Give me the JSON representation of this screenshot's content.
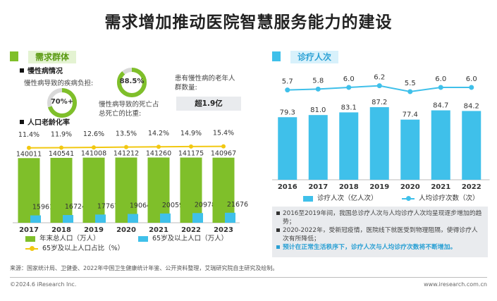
{
  "title": "需求增加推动医院智慧服务能力的建设",
  "colors": {
    "green": "#7fbf2a",
    "blue": "#3fc0ea",
    "yellow": "#f2c811",
    "light_green": "#e4f3d2",
    "light_blue": "#d8f1fb",
    "gray_box": "#e9ebee",
    "ring_track": "#d9d9d9"
  },
  "left_section": {
    "header": "需求群体",
    "chronic": {
      "subheader": "慢性病情况",
      "burden_label": "慢性病导致的疾病负担:",
      "burden_value": "70%+",
      "burden_fraction": 0.7,
      "death_value": "88.5%",
      "death_fraction": 0.885,
      "death_label_1": "慢性病导致的死亡占",
      "death_label_2": "总死亡的比重:",
      "elderly_label_1": "患有慢性病的老年人",
      "elderly_label_2": "群数量:",
      "elderly_value": "超1.9亿"
    },
    "aging": {
      "subheader": "人口老龄化率"
    }
  },
  "right_section": {
    "header": "诊疗人次"
  },
  "legends": {
    "total_pop": "年末总人口（万人）",
    "pop65": "65岁及以上人口（万人）",
    "ratio65": "65岁及以上人口占比（%）",
    "visits": "诊疗人次（亿人次）",
    "per_capita": "人均诊疗次数（次）"
  },
  "notes": [
    {
      "text": "2016至2019年间，我国总诊疗人次与人均诊疗人次均呈现逐步增加的趋势；",
      "highlight": false
    },
    {
      "text": "2020-2022年，受新冠疫情，医院线下就医受到物理阻隔，使得诊疗人次有所降低；",
      "highlight": false
    },
    {
      "text": "预计在正常生活秩序下，诊疗人次与人均诊疗次数将不断增加。",
      "highlight": true
    }
  ],
  "source": "来源：国家统计局、卫健委、2022年中国卫生健康统计年鉴、公开资料整理，艾瑞研究院自主研究及绘制。",
  "footer_left": "©2024.6 iResearch Inc.",
  "footer_right": "www.iresearch.com.cn",
  "chart_data": [
    {
      "type": "bar",
      "categories": [
        "2017",
        "2018",
        "2019",
        "2020",
        "2021",
        "2022",
        "2023"
      ],
      "series": [
        {
          "name": "年末总人口（万人）",
          "values": [
            140011,
            140541,
            141008,
            141212,
            141260,
            141175,
            140967
          ],
          "color": "#7fbf2a"
        },
        {
          "name": "65岁及以上人口（万人）",
          "values": [
            15961,
            16724,
            17767,
            19064,
            20059,
            20978,
            21676
          ],
          "color": "#3fc0ea"
        },
        {
          "name": "65岁及以上人口占比（%）",
          "type": "line",
          "values": [
            11.4,
            11.9,
            12.6,
            13.5,
            14.2,
            14.9,
            15.4
          ],
          "labels": [
            "11.4%",
            "11.9%",
            "12.6%",
            "13.5%",
            "14.2%",
            "14.9%",
            "15.4%"
          ],
          "color": "#f2c811"
        }
      ]
    },
    {
      "type": "bar",
      "categories": [
        "2016",
        "2017",
        "2018",
        "2019",
        "2020",
        "2021",
        "2022"
      ],
      "series": [
        {
          "name": "诊疗人次（亿人次）",
          "values": [
            79.3,
            81.0,
            83.1,
            87.2,
            77.4,
            84.7,
            84.2
          ],
          "color": "#3fc0ea"
        },
        {
          "name": "人均诊疗次数（次）",
          "type": "line",
          "values": [
            5.7,
            5.8,
            6.0,
            6.2,
            5.5,
            6.0,
            6.0
          ],
          "color": "#3fc0ea"
        }
      ]
    }
  ]
}
